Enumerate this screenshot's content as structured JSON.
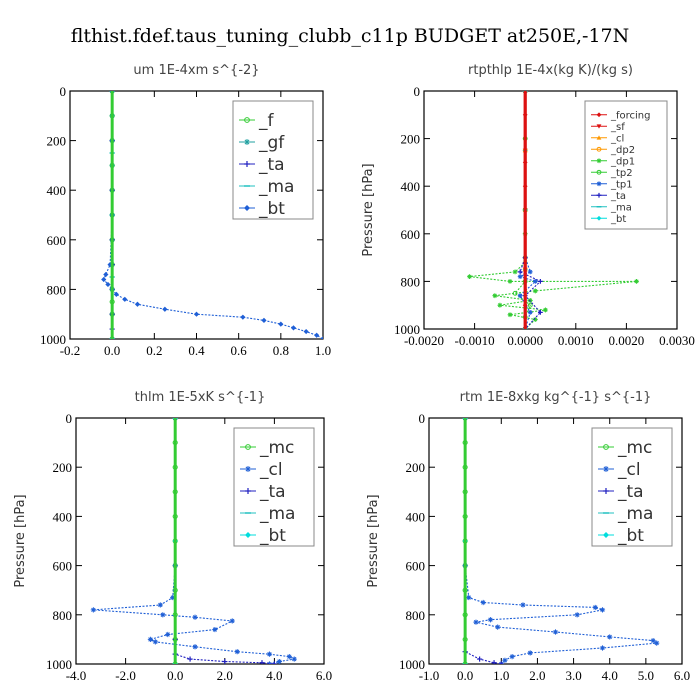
{
  "figure_title": "flthist.fdef.taus_tuning_clubb_c11p  BUDGET at250E,-17N",
  "colors": {
    "green": "#33cc33",
    "blue": "#1f5fd6",
    "darkblue": "#2020c0",
    "cyan": "#00dddd",
    "red": "#dd1111",
    "orange": "#ff9900",
    "teal": "#20a0a0",
    "axis": "#000000"
  },
  "chart_data": [
    {
      "type": "line",
      "title": "um   1E-4xm s^{-2}",
      "ylabel": "",
      "xlim": [
        -0.2,
        1.0
      ],
      "ylim": [
        1000,
        0
      ],
      "xticks": [
        "-0.2",
        "0.0",
        "0.2",
        "0.4",
        "0.6",
        "0.8",
        "1.0"
      ],
      "yticks": [
        "0",
        "200",
        "400",
        "600",
        "800",
        "1000"
      ],
      "legend": "top-right",
      "series": [
        {
          "name": "_f",
          "color": "#33cc33",
          "marker": "circle",
          "x": [
            0,
            0,
            0,
            0,
            0,
            0,
            0,
            0,
            0,
            0,
            0,
            0
          ],
          "y": [
            0,
            100,
            200,
            300,
            400,
            500,
            600,
            700,
            800,
            850,
            900,
            1000
          ]
        },
        {
          "name": "_gf",
          "color": "#20a0a0",
          "marker": "star",
          "x": [
            0,
            0,
            0,
            0,
            0,
            0,
            0,
            0,
            0,
            0,
            0
          ],
          "y": [
            0,
            100,
            200,
            300,
            400,
            500,
            600,
            700,
            800,
            900,
            1000
          ]
        },
        {
          "name": "_ta",
          "color": "#2020c0",
          "marker": "plus",
          "x": [
            0,
            0,
            0,
            0,
            0,
            0,
            0,
            0,
            0
          ],
          "y": [
            0,
            200,
            400,
            600,
            700,
            800,
            900,
            960,
            1000
          ]
        },
        {
          "name": "_ma",
          "color": "#20c0c0",
          "marker": "dash",
          "x": [
            0,
            0,
            0,
            0,
            0
          ],
          "y": [
            0,
            250,
            500,
            750,
            1000
          ]
        },
        {
          "name": "_bt",
          "color": "#1f5fd6",
          "marker": "diamond",
          "x": [
            0,
            0,
            0,
            -0.01,
            -0.03,
            -0.04,
            -0.02,
            0.0,
            0.02,
            0.06,
            0.12,
            0.25,
            0.4,
            0.62,
            0.72,
            0.8,
            0.86,
            0.92,
            0.97,
            1.0
          ],
          "y": [
            0,
            200,
            500,
            700,
            740,
            760,
            780,
            800,
            820,
            840,
            860,
            880,
            900,
            912,
            925,
            940,
            955,
            970,
            985,
            1000
          ]
        }
      ]
    },
    {
      "type": "line",
      "title": "rtpthlp   1E-4x(kg K)/(kg s)",
      "ylabel": "Pressure [hPa]",
      "xlim": [
        -0.002,
        0.003
      ],
      "ylim": [
        1000,
        0
      ],
      "xticks": [
        "-0.0020",
        "-0.0010",
        "0.0000",
        "0.0010",
        "0.0020",
        "0.0030"
      ],
      "yticks": [
        "0",
        "200",
        "400",
        "600",
        "800",
        "1000"
      ],
      "legend": "top-right",
      "series": [
        {
          "name": "_forcing",
          "color": "#dd1111",
          "marker": "diamond",
          "x": [
            0,
            0,
            0,
            0,
            0,
            0,
            0,
            0,
            0,
            0,
            0
          ],
          "y": [
            0,
            100,
            200,
            300,
            400,
            500,
            600,
            700,
            800,
            900,
            1000
          ]
        },
        {
          "name": "_sf",
          "color": "#dd1111",
          "marker": "triangle-down",
          "x": [
            0,
            0,
            0,
            0,
            0
          ],
          "y": [
            0,
            250,
            500,
            750,
            1000
          ]
        },
        {
          "name": "_cl",
          "color": "#ff9900",
          "marker": "triangle",
          "x": [
            0,
            0,
            0,
            0,
            0
          ],
          "y": [
            0,
            250,
            500,
            750,
            1000
          ]
        },
        {
          "name": "_dp2",
          "color": "#ff9900",
          "marker": "circle",
          "x": [
            0,
            0,
            0,
            0,
            0
          ],
          "y": [
            0,
            250,
            500,
            750,
            1000
          ]
        },
        {
          "name": "_dp1",
          "color": "#33cc33",
          "marker": "star",
          "x": [
            0,
            0,
            0,
            -0.0002,
            -0.0011,
            -0.0003,
            0.0022,
            0.0002,
            -0.0006,
            0.0001,
            -0.0005,
            0.0004,
            -0.0003,
            0.0002,
            0
          ],
          "y": [
            0,
            600,
            720,
            760,
            780,
            800,
            800,
            840,
            860,
            880,
            900,
            920,
            940,
            960,
            1000
          ]
        },
        {
          "name": "_tp2",
          "color": "#33cc33",
          "marker": "circle",
          "x": [
            0,
            0,
            0,
            0,
            0,
            -0.0002,
            0.0001,
            0,
            0
          ],
          "y": [
            0,
            200,
            500,
            700,
            800,
            850,
            900,
            950,
            1000
          ]
        },
        {
          "name": "_tp1",
          "color": "#1f5fd6",
          "marker": "star",
          "x": [
            0,
            0,
            0.0001,
            -0.0001,
            0.0002,
            -0.0001,
            0.0001,
            0
          ],
          "y": [
            0,
            700,
            760,
            780,
            800,
            860,
            930,
            1000
          ]
        },
        {
          "name": "_ta",
          "color": "#2020c0",
          "marker": "plus",
          "x": [
            0,
            0,
            -0.0001,
            0.0003,
            0,
            0.0003,
            0
          ],
          "y": [
            0,
            700,
            760,
            800,
            860,
            930,
            1000
          ]
        },
        {
          "name": "_ma",
          "color": "#20c0c0",
          "marker": "dash",
          "x": [
            0,
            0
          ],
          "y": [
            0,
            1000
          ]
        },
        {
          "name": "_bt",
          "color": "#00dddd",
          "marker": "diamond",
          "x": [
            0,
            0,
            0,
            0,
            0
          ],
          "y": [
            0,
            250,
            500,
            750,
            1000
          ]
        }
      ]
    },
    {
      "type": "line",
      "title": "thlm   1E-5xK s^{-1}",
      "ylabel": "Pressure [hPa]",
      "xlim": [
        -4.0,
        6.0
      ],
      "ylim": [
        1000,
        0
      ],
      "xticks": [
        "-4.0",
        "-2.0",
        "0.0",
        "2.0",
        "4.0",
        "6.0"
      ],
      "yticks": [
        "0",
        "200",
        "400",
        "600",
        "800",
        "1000"
      ],
      "legend": "top-right",
      "series": [
        {
          "name": "_mc",
          "color": "#33cc33",
          "marker": "circle",
          "x": [
            0,
            0,
            0,
            0,
            0,
            0,
            0,
            0,
            0,
            0,
            0
          ],
          "y": [
            0,
            100,
            200,
            300,
            400,
            500,
            600,
            700,
            800,
            900,
            1000
          ]
        },
        {
          "name": "_cl",
          "color": "#1f5fd6",
          "marker": "star",
          "x": [
            0,
            0,
            -0.1,
            -0.6,
            -3.3,
            -0.5,
            0.8,
            2.3,
            1.6,
            -0.3,
            -1.0,
            -0.8,
            0.8,
            2.5,
            3.8,
            4.6,
            4.8,
            4.2,
            3.8
          ],
          "y": [
            0,
            600,
            730,
            760,
            780,
            800,
            810,
            825,
            860,
            880,
            900,
            910,
            930,
            950,
            960,
            970,
            980,
            990,
            1000
          ]
        },
        {
          "name": "_ta",
          "color": "#2020c0",
          "marker": "plus",
          "x": [
            0,
            0,
            0,
            0.6,
            2.0,
            3.5,
            4.0
          ],
          "y": [
            0,
            900,
            960,
            980,
            990,
            995,
            1000
          ]
        },
        {
          "name": "_ma",
          "color": "#20c0c0",
          "marker": "dash",
          "x": [
            0,
            0
          ],
          "y": [
            0,
            1000
          ]
        },
        {
          "name": "_bt",
          "color": "#00dddd",
          "marker": "diamond",
          "x": [
            0,
            0,
            0
          ],
          "y": [
            0,
            500,
            1000
          ]
        }
      ]
    },
    {
      "type": "line",
      "title": "rtm   1E-8xkg kg^{-1} s^{-1}",
      "ylabel": "Pressure [hPa]",
      "xlim": [
        -1.0,
        6.0
      ],
      "ylim": [
        1000,
        0
      ],
      "xticks": [
        "-1.0",
        "0.0",
        "1.0",
        "2.0",
        "3.0",
        "4.0",
        "5.0",
        "6.0"
      ],
      "yticks": [
        "0",
        "200",
        "400",
        "600",
        "800",
        "1000"
      ],
      "legend": "top-right",
      "series": [
        {
          "name": "_mc",
          "color": "#33cc33",
          "marker": "circle",
          "x": [
            0,
            0,
            0,
            0,
            0,
            0,
            0,
            0,
            0,
            0,
            0
          ],
          "y": [
            0,
            100,
            200,
            300,
            400,
            500,
            600,
            700,
            800,
            900,
            1000
          ]
        },
        {
          "name": "_cl",
          "color": "#1f5fd6",
          "marker": "star",
          "x": [
            0,
            0,
            0.1,
            0.5,
            1.6,
            3.6,
            3.8,
            3.1,
            0.7,
            0.3,
            0.9,
            2.5,
            4.0,
            5.2,
            5.3,
            3.8,
            1.8,
            1.3,
            1.1,
            1.0
          ],
          "y": [
            0,
            600,
            730,
            750,
            760,
            770,
            780,
            800,
            820,
            830,
            850,
            870,
            890,
            905,
            915,
            935,
            955,
            970,
            985,
            1000
          ]
        },
        {
          "name": "_ta",
          "color": "#2020c0",
          "marker": "plus",
          "x": [
            0,
            0,
            0.4,
            0.8,
            1.0
          ],
          "y": [
            0,
            950,
            980,
            995,
            1000
          ]
        },
        {
          "name": "_ma",
          "color": "#20c0c0",
          "marker": "dash",
          "x": [
            0,
            0
          ],
          "y": [
            0,
            1000
          ]
        },
        {
          "name": "_bt",
          "color": "#00dddd",
          "marker": "diamond",
          "x": [
            0,
            0,
            0
          ],
          "y": [
            0,
            500,
            1000
          ]
        }
      ]
    }
  ]
}
